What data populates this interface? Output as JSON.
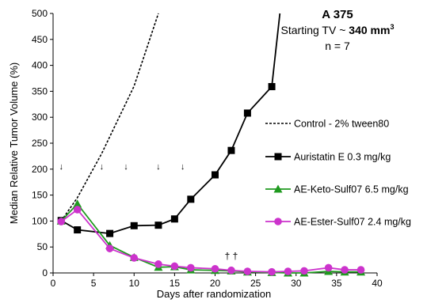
{
  "chart_data": {
    "type": "line",
    "xlabel": "Days after randomization",
    "ylabel": "Median Relative Tumor Volume (%)",
    "xlim": [
      0,
      40
    ],
    "ylim": [
      0,
      500
    ],
    "xticks": [
      0,
      5,
      10,
      15,
      20,
      25,
      30,
      35,
      40
    ],
    "yticks": [
      0,
      50,
      100,
      150,
      200,
      250,
      300,
      350,
      400,
      450,
      500
    ],
    "grid": false,
    "legend_position": "right",
    "annotation": {
      "title": "A 375",
      "line2_prefix": "Starting TV ~ ",
      "line2_value": "340 mm",
      "line2_sup": "3",
      "line3": "n = 7"
    },
    "dosing_days": [
      1,
      6,
      9,
      13,
      16
    ],
    "dosing_marker": "↓",
    "death_marker_text": "† †",
    "death_marker_x": 22,
    "death_marker_y": 27,
    "series": [
      {
        "name": "Control - 2% tween80",
        "color": "#000000",
        "dash": true,
        "marker": "none",
        "x": [
          1,
          3,
          6,
          10,
          13
        ],
        "y": [
          100,
          145,
          230,
          360,
          500
        ]
      },
      {
        "name": "Auristatin E 0.3 mg/kg",
        "color": "#000000",
        "dash": false,
        "marker": "square",
        "x": [
          1,
          3,
          7,
          10,
          13,
          15,
          17,
          20,
          22,
          24,
          27,
          28
        ],
        "y": [
          101,
          83,
          76,
          91,
          92,
          104,
          142,
          189,
          236,
          308,
          359,
          500
        ]
      },
      {
        "name": "AE-Keto-Sulf07 6.5 mg/kg",
        "color": "#1f9a1f",
        "dash": false,
        "marker": "triangle",
        "x": [
          1,
          3,
          7,
          10,
          13,
          15,
          17,
          20,
          22,
          24,
          27,
          29,
          31,
          34,
          36,
          38
        ],
        "y": [
          100,
          133,
          53,
          30,
          11,
          12,
          6,
          5,
          4,
          2,
          1,
          0,
          0,
          3,
          2,
          2
        ]
      },
      {
        "name": "AE-Ester-Sulf07 2.4 mg/kg",
        "color": "#cc33cc",
        "dash": false,
        "marker": "circle",
        "x": [
          1,
          3,
          7,
          10,
          13,
          15,
          17,
          20,
          22,
          24,
          27,
          29,
          31,
          34,
          36,
          38
        ],
        "y": [
          99,
          122,
          47,
          29,
          17,
          13,
          10,
          8,
          5,
          3,
          2,
          3,
          4,
          10,
          6,
          6
        ]
      }
    ]
  }
}
